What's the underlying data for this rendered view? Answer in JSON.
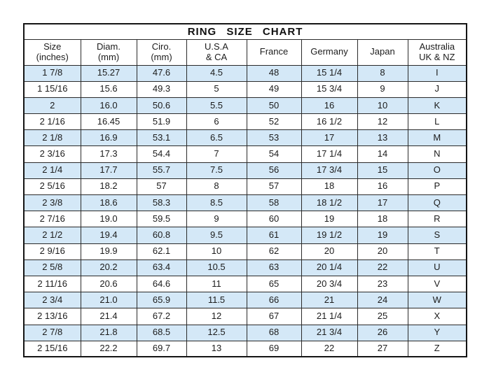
{
  "title": "RING SIZE CHART",
  "colors": {
    "row_shade": "#d4e8f7",
    "border_outer": "#141414",
    "border_inner": "#2a2a2a",
    "background": "#ffffff",
    "text": "#1c1c1c"
  },
  "chart_data": {
    "type": "table",
    "title": "RING  SIZE  CHART",
    "columns": [
      "Size (inches)",
      "Diam. (mm)",
      "Ciro. (mm)",
      "U.S.A & CA",
      "France",
      "Germany",
      "Japan",
      "Australia UK & NZ"
    ],
    "header_lines": [
      [
        "Size",
        "(inches)"
      ],
      [
        "Diam.",
        "(mm)"
      ],
      [
        "Ciro.",
        "(mm)"
      ],
      [
        "U.S.A",
        "& CA"
      ],
      [
        "France"
      ],
      [
        "Germany"
      ],
      [
        "Japan"
      ],
      [
        "Australia",
        "UK & NZ"
      ]
    ],
    "rows": [
      [
        "1 7/8",
        "15.27",
        "47.6",
        "4.5",
        "48",
        "15 1/4",
        "8",
        "I"
      ],
      [
        "1 15/16",
        "15.6",
        "49.3",
        "5",
        "49",
        "15 3/4",
        "9",
        "J"
      ],
      [
        "2",
        "16.0",
        "50.6",
        "5.5",
        "50",
        "16",
        "10",
        "K"
      ],
      [
        "2 1/16",
        "16.45",
        "51.9",
        "6",
        "52",
        "16 1/2",
        "12",
        "L"
      ],
      [
        "2 1/8",
        "16.9",
        "53.1",
        "6.5",
        "53",
        "17",
        "13",
        "M"
      ],
      [
        "2 3/16",
        "17.3",
        "54.4",
        "7",
        "54",
        "17 1/4",
        "14",
        "N"
      ],
      [
        "2 1/4",
        "17.7",
        "55.7",
        "7.5",
        "56",
        "17 3/4",
        "15",
        "O"
      ],
      [
        "2 5/16",
        "18.2",
        "57",
        "8",
        "57",
        "18",
        "16",
        "P"
      ],
      [
        "2 3/8",
        "18.6",
        "58.3",
        "8.5",
        "58",
        "18 1/2",
        "17",
        "Q"
      ],
      [
        "2 7/16",
        "19.0",
        "59.5",
        "9",
        "60",
        "19",
        "18",
        "R"
      ],
      [
        "2 1/2",
        "19.4",
        "60.8",
        "9.5",
        "61",
        "19 1/2",
        "19",
        "S"
      ],
      [
        "2 9/16",
        "19.9",
        "62.1",
        "10",
        "62",
        "20",
        "20",
        "T"
      ],
      [
        "2 5/8",
        "20.2",
        "63.4",
        "10.5",
        "63",
        "20 1/4",
        "22",
        "U"
      ],
      [
        "2 11/16",
        "20.6",
        "64.6",
        "11",
        "65",
        "20 3/4",
        "23",
        "V"
      ],
      [
        "2 3/4",
        "21.0",
        "65.9",
        "11.5",
        "66",
        "21",
        "24",
        "W"
      ],
      [
        "2 13/16",
        "21.4",
        "67.2",
        "12",
        "67",
        "21 1/4",
        "25",
        "X"
      ],
      [
        "2 7/8",
        "21.8",
        "68.5",
        "12.5",
        "68",
        "21 3/4",
        "26",
        "Y"
      ],
      [
        "2 15/16",
        "22.2",
        "69.7",
        "13",
        "69",
        "22",
        "27",
        "Z"
      ]
    ],
    "shaded_row_indices": [
      0,
      2,
      4,
      6,
      8,
      10,
      12,
      14,
      16
    ],
    "layout": {
      "first_row_shaded": true,
      "alternating": true
    }
  }
}
